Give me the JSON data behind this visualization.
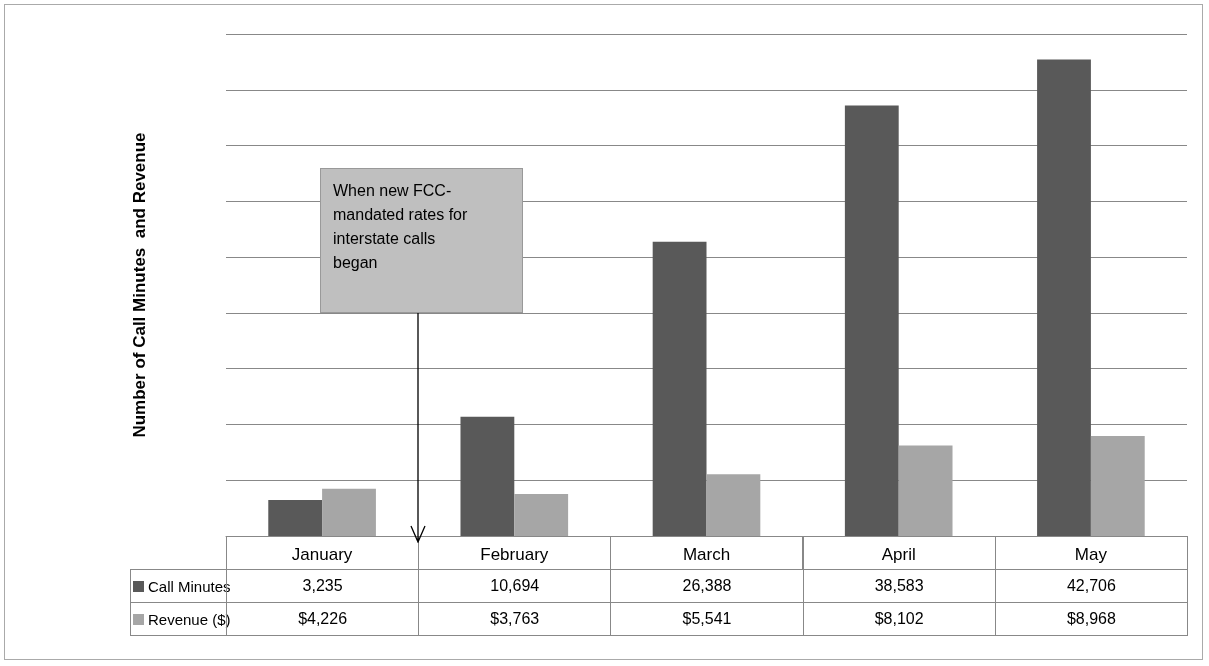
{
  "chart_data": {
    "type": "bar",
    "ylabel": "Number of Call Minutes  and Revenue",
    "categories": [
      "January",
      "February",
      "March",
      "April",
      "May"
    ],
    "series": [
      {
        "name": "Call Minutes",
        "color": "#595959",
        "values": [
          3235,
          10694,
          26388,
          38583,
          42706
        ],
        "value_labels": [
          "3,235",
          "10,694",
          "26,388",
          "38,583",
          "42,706"
        ]
      },
      {
        "name": "Revenue ($)",
        "color": "#a6a6a6",
        "values": [
          4226,
          3763,
          5541,
          8102,
          8968
        ],
        "value_labels": [
          "$4,226",
          "$3,763",
          "$5,541",
          "$8,102",
          "$8,968"
        ]
      }
    ],
    "ylim": [
      0,
      45000
    ],
    "yticks": [
      {
        "value": 0,
        "label": null
      },
      {
        "value": 5000,
        "label": null
      },
      {
        "value": 10000,
        "label": null
      },
      {
        "value": 15000,
        "label": null
      },
      {
        "value": 20000,
        "label": null
      },
      {
        "value": 25000,
        "label": null
      },
      {
        "value": 30000,
        "label": null
      },
      {
        "value": 35000,
        "label": null
      },
      {
        "value": 40000,
        "label": null
      },
      {
        "value": 45000,
        "label": null
      }
    ],
    "grid": "y",
    "legend": "bottom",
    "tick_labels": "x",
    "annotations": [
      "When new FCC-mandated  rates for interstate calls began"
    ]
  }
}
